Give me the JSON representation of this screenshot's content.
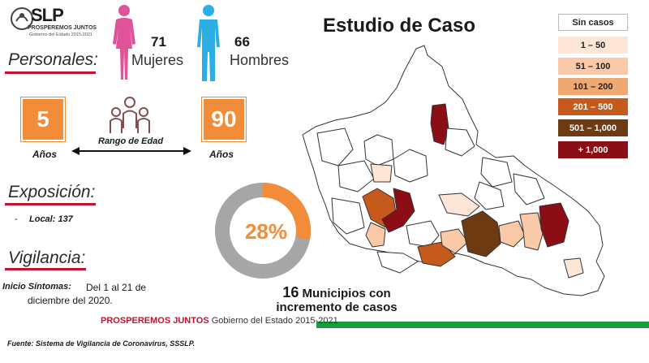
{
  "logo": {
    "text": "SLP",
    "subtitle": "PROSPEREMOS JUNTOS",
    "subtitle2": "Gobierno del Estado 2015-2021"
  },
  "title": "Estudio de Caso",
  "personales": {
    "heading": "Personales:",
    "women_count": "71",
    "women_label": "Mujeres",
    "men_count": "66",
    "men_label": "Hombres"
  },
  "age": {
    "min": "5",
    "max": "90",
    "min_unit": "Años",
    "max_unit": "Años",
    "range_label": "Rango de Edad"
  },
  "exposicion": {
    "heading": "Exposición:",
    "bullet_dash": "-",
    "item": "Local: 137"
  },
  "vigilancia": {
    "heading": "Vigilancia:",
    "onset_label": "Inicio Síntomas:",
    "onset_value_1": "Del 1 al 21 de",
    "onset_value_2": "diciembre del 2020."
  },
  "percentage": {
    "label": "28%",
    "value": 0.28
  },
  "increase": {
    "count": "16",
    "line1_rest": "Municipios con",
    "line2": "incremento de casos"
  },
  "legend": [
    {
      "label": "Sin casos",
      "color": "#ffffff",
      "text_color": "#222222"
    },
    {
      "label": "1 – 50",
      "color": "#fde6d6",
      "text_color": "#222222"
    },
    {
      "label": "51 – 100",
      "color": "#f9c9a8",
      "text_color": "#222222"
    },
    {
      "label": "101 – 200",
      "color": "#f0a873",
      "text_color": "#222222"
    },
    {
      "label": "201 – 500",
      "color": "#c55a1c",
      "text_color": "#ffffff"
    },
    {
      "label": "501 – 1,000",
      "color": "#6e3a12",
      "text_color": "#ffffff"
    },
    {
      "label": "+ 1,000",
      "color": "#8b0d16",
      "text_color": "#ffffff"
    }
  ],
  "footer": {
    "bold": "PROSPEREMOS JUNTOS",
    "rest": "Gobierno del Estado 2015-2021",
    "source": "Fuente: Sistema de Vigilancia de Coronavirus, SSSLP."
  },
  "colors": {
    "accent_orange": "#f28c38",
    "accent_red": "#c8102e",
    "women_pink": "#e0529a",
    "men_blue": "#2aaee3",
    "footer_red": "#c8102e",
    "footer_green": "#1a9b3c",
    "ring_grey": "#a6a6a6"
  }
}
